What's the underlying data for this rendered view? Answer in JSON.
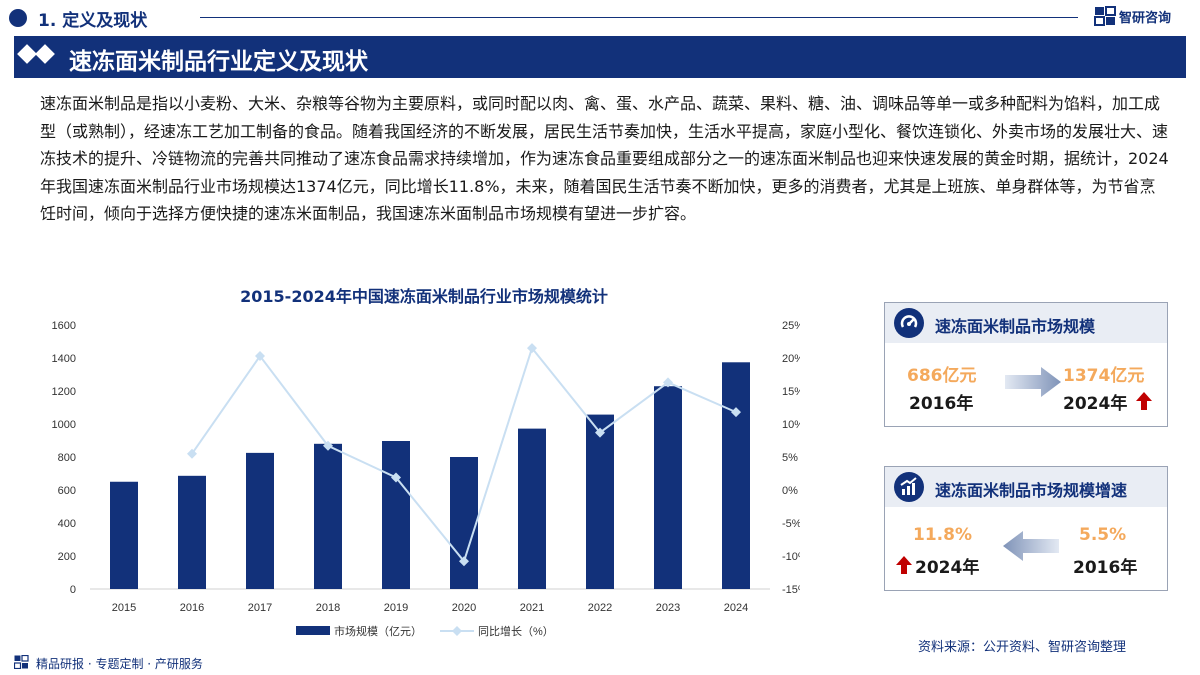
{
  "header": {
    "section_title": "1. 定义及现状",
    "logo_text": "智研咨询",
    "banner_title": "速冻面米制品行业定义及现状"
  },
  "intro": {
    "text": "速冻面米制品是指以小麦粉、大米、杂粮等谷物为主要原料，或同时配以肉、禽、蛋、水产品、蔬菜、果料、糖、油、调味品等单一或多种配料为馅料，加工成型（或熟制），经速冻工艺加工制备的食品。随着我国经济的不断发展，居民生活节奏加快，生活水平提高，家庭小型化、餐饮连锁化、外卖市场的发展壮大、速冻技术的提升、冷链物流的完善共同推动了速冻食品需求持续增加，作为速冻食品重要组成部分之一的速冻面米制品也迎来快速发展的黄金时期，据统计，2024年我国速冻面米制品行业市场规模达1374亿元，同比增长11.8%，未来，随着国民生活节奏不断加快，更多的消费者，尤其是上班族、单身群体等，为节省烹饪时间，倾向于选择方便快捷的速冻米面制品，我国速冻米面制品市场规模有望进一步扩容。"
  },
  "chart_data": {
    "type": "bar",
    "title": "2015-2024年中国速冻面米制品行业市场规模统计",
    "categories": [
      "2015",
      "2016",
      "2017",
      "2018",
      "2019",
      "2020",
      "2021",
      "2022",
      "2023",
      "2024"
    ],
    "series": [
      {
        "name": "市场规模（亿元）",
        "type": "bar",
        "axis": "left",
        "color": "#12317a",
        "values": [
          650,
          686,
          825,
          880,
          897,
          800,
          972,
          1057,
          1229,
          1374
        ]
      },
      {
        "name": "同比增长（%）",
        "type": "line",
        "axis": "right",
        "color": "#c9dff2",
        "values": [
          null,
          5.5,
          20.3,
          6.7,
          1.9,
          -10.8,
          21.5,
          8.7,
          16.3,
          11.8
        ]
      }
    ],
    "y_left": {
      "min": 0,
      "max": 1600,
      "ticks": [
        "0",
        "200",
        "400",
        "600",
        "800",
        "1000",
        "1200",
        "1400",
        "1600"
      ]
    },
    "y_right": {
      "min": -15,
      "max": 25,
      "ticks": [
        "-15%",
        "-10%",
        "-5%",
        "0%",
        "5%",
        "10%",
        "15%",
        "20%",
        "25%"
      ]
    },
    "grid": false,
    "legend_position": "bottom"
  },
  "cards": {
    "scale": {
      "title": "速冻面米制品市场规模",
      "left_value": "686亿元",
      "left_year": "2016年",
      "right_value": "1374亿元",
      "right_year": "2024年"
    },
    "growth": {
      "title": "速冻面米制品市场规模增速",
      "left_value": "11.8%",
      "left_year": "2024年",
      "right_value": "5.5%",
      "right_year": "2016年"
    }
  },
  "colors": {
    "brand": "#12317a",
    "accent_orange": "#f4a95c",
    "up_arrow": "#c00000",
    "line": "#c9dff2"
  },
  "footer": {
    "source": "资料来源：公开资料、智研咨询整理",
    "tagline": "精品研报 · 专题定制 · 产研服务"
  }
}
